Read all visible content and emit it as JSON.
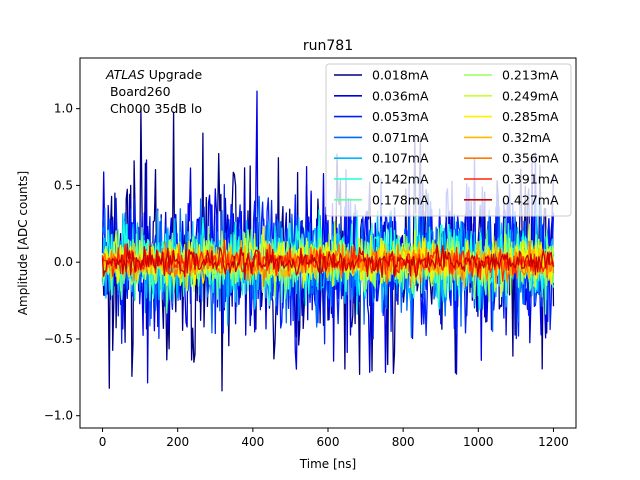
{
  "chart_data": {
    "type": "line",
    "title": "run781",
    "xlabel": "Time [ns]",
    "ylabel": "Amplitude [ADC counts]",
    "xlim": [
      -60,
      1260
    ],
    "ylim": [
      -1.08,
      1.33
    ],
    "xticks": [
      0,
      200,
      400,
      600,
      800,
      1000,
      1200
    ],
    "yticks": [
      -1.0,
      -0.5,
      0.0,
      0.5,
      1.0
    ],
    "xtick_labels": [
      "0",
      "200",
      "400",
      "600",
      "800",
      "1000",
      "1200"
    ],
    "ytick_labels": [
      "−1.0",
      "−0.5",
      "0.0",
      "0.5",
      "1.0"
    ],
    "grid": false,
    "legend_position": "top-right",
    "legend_columns": 2,
    "annotation": {
      "experiment": "ATLAS",
      "suffix": " Upgrade",
      "line2": " Board260",
      "line3": " Ch000 35dB lo"
    },
    "time_range": [
      0,
      1200
    ],
    "sample_step": 3,
    "series": [
      {
        "name": "0.018mA",
        "color": "#00007f",
        "noise_sigma": 0.3
      },
      {
        "name": "0.036mA",
        "color": "#0000e5",
        "noise_sigma": 0.26
      },
      {
        "name": "0.053mA",
        "color": "#0020ff",
        "noise_sigma": 0.22
      },
      {
        "name": "0.071mA",
        "color": "#006cff",
        "noise_sigma": 0.18
      },
      {
        "name": "0.107mA",
        "color": "#00b8ff",
        "noise_sigma": 0.14
      },
      {
        "name": "0.142mA",
        "color": "#1cffdb",
        "noise_sigma": 0.12
      },
      {
        "name": "0.178mA",
        "color": "#5effa0",
        "noise_sigma": 0.1
      },
      {
        "name": "0.213mA",
        "color": "#9cff5a",
        "noise_sigma": 0.085
      },
      {
        "name": "0.249mA",
        "color": "#c8ff2e",
        "noise_sigma": 0.075
      },
      {
        "name": "0.285mA",
        "color": "#fff200",
        "noise_sigma": 0.065
      },
      {
        "name": "0.32mA",
        "color": "#ffb900",
        "noise_sigma": 0.055
      },
      {
        "name": "0.356mA",
        "color": "#ff7a00",
        "noise_sigma": 0.05
      },
      {
        "name": "0.391mA",
        "color": "#ff2600",
        "noise_sigma": 0.045
      },
      {
        "name": "0.427mA",
        "color": "#cc0000",
        "noise_sigma": 0.04
      }
    ]
  }
}
